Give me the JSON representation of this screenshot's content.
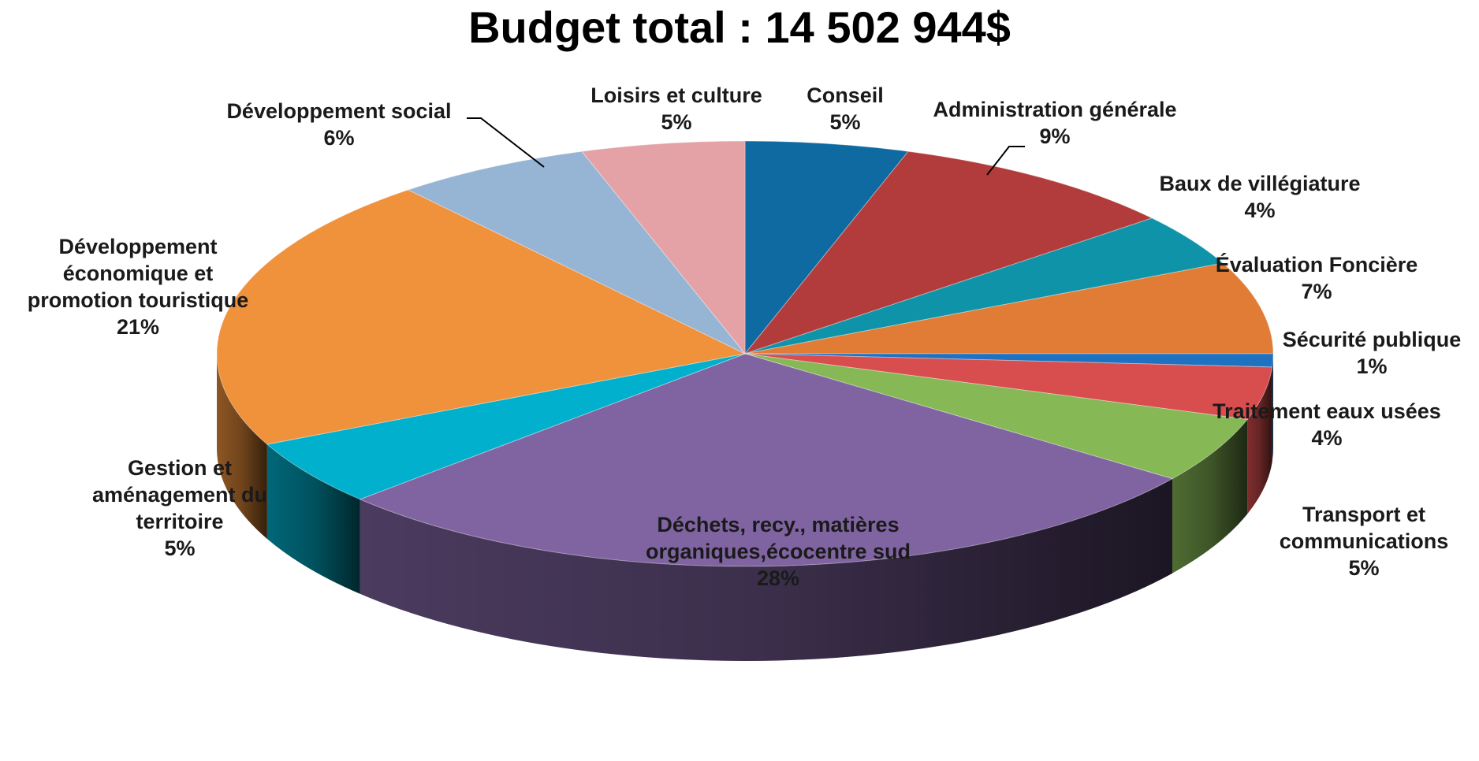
{
  "chart_data": {
    "type": "pie",
    "title": "Budget total : 14 502 944$",
    "slices": [
      {
        "label": [
          "Conseil"
        ],
        "percent_label": "5%",
        "value": 5,
        "color": "#0e6aa0"
      },
      {
        "label": [
          "Administration  générale"
        ],
        "percent_label": "9%",
        "value": 9,
        "color": "#b23c3c"
      },
      {
        "label": [
          "Baux de villégiature"
        ],
        "percent_label": "4%",
        "value": 4,
        "color": "#0f93a8"
      },
      {
        "label": [
          "Évaluation Foncière"
        ],
        "percent_label": "7%",
        "value": 7,
        "color": "#e07c35"
      },
      {
        "label": [
          "Sécurité publique"
        ],
        "percent_label": "1%",
        "value": 1,
        "color": "#1f72c0"
      },
      {
        "label": [
          "Traitement eaux usées"
        ],
        "percent_label": "4%",
        "value": 4,
        "color": "#d84d4d"
      },
      {
        "label": [
          "Transport et",
          "communications"
        ],
        "percent_label": "5%",
        "value": 5,
        "color": "#86b856"
      },
      {
        "label": [
          "Déchets, recy., matières",
          "organiques,écocentre sud"
        ],
        "percent_label": "28%",
        "value": 28,
        "color": "#8064a2"
      },
      {
        "label": [
          "Gestion et",
          "aménagement du",
          "territoire"
        ],
        "percent_label": "5%",
        "value": 5,
        "color": "#00b0cc"
      },
      {
        "label": [
          "Développement",
          "économique et",
          "promotion touristique"
        ],
        "percent_label": "21%",
        "value": 21,
        "color": "#f0913c"
      },
      {
        "label": [
          "Développement social"
        ],
        "percent_label": "6%",
        "value": 6,
        "color": "#96b4d4"
      },
      {
        "label": [
          "Loisirs et culture"
        ],
        "percent_label": "5%",
        "value": 5,
        "color": "#e4a2a6"
      }
    ]
  }
}
